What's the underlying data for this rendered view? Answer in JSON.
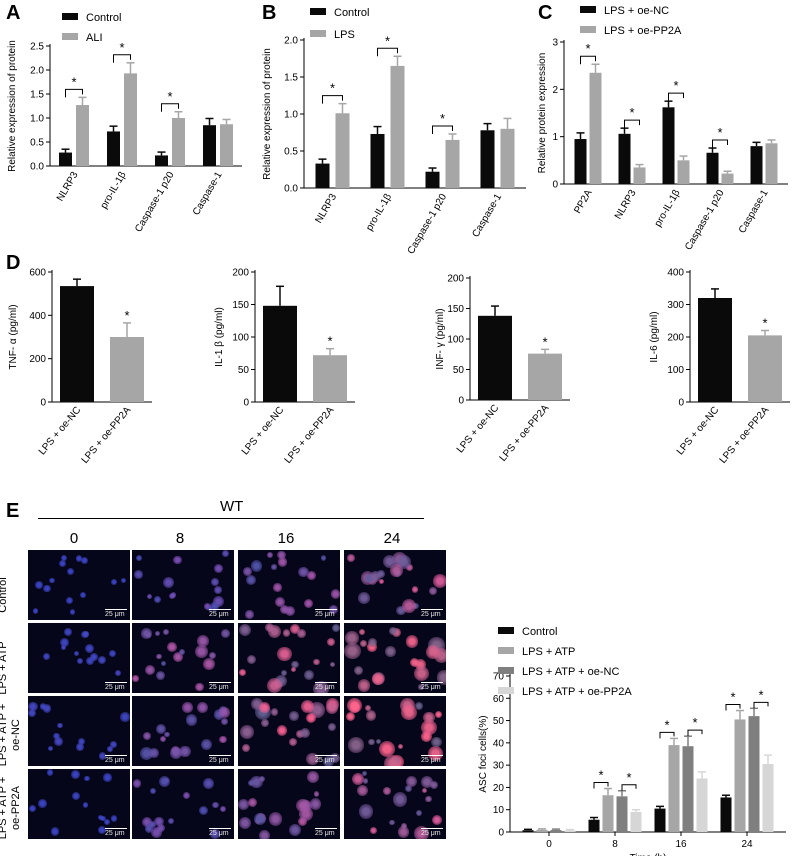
{
  "panels": {
    "a": "A",
    "b": "B",
    "c": "C",
    "d": "D",
    "e": "E"
  },
  "colors": {
    "black": "#0a0a0a",
    "gray": "#a6a6a6",
    "dgray": "#7f7f7f",
    "lgray": "#d6d6d6"
  },
  "significance_marker": "*",
  "chart_data": [
    {
      "id": "A",
      "type": "bar",
      "ylabel": "Relative expression of protein",
      "categories": [
        "NLRP3",
        "pro-IL-1β",
        "Caspase-1 p20",
        "Caspase-1"
      ],
      "yticks": [
        "0.0",
        "0.5",
        "1.0",
        "1.5",
        "2.0",
        "2.5"
      ],
      "ylim": [
        0,
        2.5
      ],
      "series": [
        {
          "name": "Control",
          "values": [
            0.28,
            0.72,
            0.22,
            0.85
          ],
          "errors": [
            0.07,
            0.11,
            0.07,
            0.14
          ]
        },
        {
          "name": "ALI",
          "values": [
            1.27,
            1.93,
            1.0,
            0.87
          ],
          "errors": [
            0.16,
            0.22,
            0.13,
            0.1
          ]
        }
      ],
      "significant": [
        0,
        1,
        2
      ]
    },
    {
      "id": "B",
      "type": "bar",
      "ylabel": "Relative expression of protein",
      "categories": [
        "NLRP3",
        "pro-IL-1β",
        "Caspase-1 p20",
        "Caspase-1"
      ],
      "yticks": [
        "0.0",
        "0.5",
        "1.0",
        "1.5",
        "2.0"
      ],
      "ylim": [
        0,
        2.0
      ],
      "series": [
        {
          "name": "Control",
          "values": [
            0.33,
            0.73,
            0.22,
            0.78
          ],
          "errors": [
            0.06,
            0.1,
            0.05,
            0.09
          ]
        },
        {
          "name": "LPS",
          "values": [
            1.01,
            1.65,
            0.65,
            0.8
          ],
          "errors": [
            0.13,
            0.13,
            0.08,
            0.14
          ]
        }
      ],
      "significant": [
        0,
        1,
        2
      ]
    },
    {
      "id": "C",
      "type": "bar",
      "ylabel": "Relative protein expression",
      "categories": [
        "PP2A",
        "NLRP3",
        "pro-IL-1β",
        "Caspase-1 p20",
        "Caspase-1"
      ],
      "yticks": [
        "0",
        "1",
        "2",
        "3"
      ],
      "ylim": [
        0,
        3
      ],
      "series": [
        {
          "name": "LPS + oe-NC",
          "values": [
            0.95,
            1.06,
            1.62,
            0.66,
            0.8
          ],
          "errors": [
            0.13,
            0.12,
            0.13,
            0.1,
            0.08
          ]
        },
        {
          "name": "LPS + oe-PP2A",
          "values": [
            2.35,
            0.35,
            0.5,
            0.22,
            0.86
          ],
          "errors": [
            0.18,
            0.06,
            0.09,
            0.05,
            0.07
          ]
        }
      ],
      "significant": [
        0,
        1,
        2,
        3
      ]
    },
    {
      "id": "D1",
      "type": "bar",
      "ylabel": "TNF- α (pg/ml)",
      "categories": [
        "LPS + oe-NC",
        "LPS + oe-PP2A"
      ],
      "yticks": [
        "0",
        "200",
        "400",
        "600"
      ],
      "ylim": [
        0,
        600
      ],
      "values": [
        535,
        300
      ],
      "errors": [
        32,
        65
      ]
    },
    {
      "id": "D2",
      "type": "bar",
      "ylabel": "IL-1 β (pg/ml)",
      "categories": [
        "LPS + oe-NC",
        "LPS + oe-PP2A"
      ],
      "yticks": [
        "0",
        "50",
        "100",
        "150",
        "200"
      ],
      "ylim": [
        0,
        200
      ],
      "values": [
        148,
        72
      ],
      "errors": [
        30,
        10
      ]
    },
    {
      "id": "D3",
      "type": "bar",
      "ylabel": "INF- γ (pg/ml)",
      "categories": [
        "LPS + oe-NC",
        "LPS + oe-PP2A"
      ],
      "yticks": [
        "0",
        "50",
        "100",
        "150",
        "200"
      ],
      "ylim": [
        0,
        200
      ],
      "values": [
        138,
        76
      ],
      "errors": [
        16,
        7
      ]
    },
    {
      "id": "D4",
      "type": "bar",
      "ylabel": "IL-6 (pg/ml)",
      "categories": [
        "LPS + oe-NC",
        "LPS + oe-PP2A"
      ],
      "yticks": [
        "0",
        "100",
        "200",
        "300",
        "400"
      ],
      "ylim": [
        0,
        400
      ],
      "values": [
        320,
        205
      ],
      "errors": [
        28,
        15
      ]
    },
    {
      "id": "E",
      "type": "bar",
      "ylabel": "ASC foci cells(%)",
      "xlabel": "Time (h)",
      "categories": [
        "0",
        "8",
        "16",
        "24"
      ],
      "yticks": [
        "0",
        "10",
        "20",
        "30",
        "40",
        "50",
        "60",
        "70"
      ],
      "ylim": [
        0,
        70
      ],
      "series": [
        {
          "name": "Control",
          "values": [
            0.8,
            5.5,
            10.5,
            15.5
          ],
          "errors": [
            0.4,
            1.0,
            1.0,
            1.0
          ]
        },
        {
          "name": "LPS + ATP",
          "values": [
            1.0,
            16.5,
            39.0,
            50.5
          ],
          "errors": [
            0.4,
            3.0,
            3.0,
            4.0
          ]
        },
        {
          "name": "LPS + ATP + oe-NC",
          "values": [
            0.9,
            16.0,
            38.5,
            52.0
          ],
          "errors": [
            0.4,
            2.5,
            4.5,
            3.5
          ]
        },
        {
          "name": "LPS + ATP + oe-PP2A",
          "values": [
            0.7,
            9.0,
            24.0,
            30.5
          ],
          "errors": [
            0.4,
            1.0,
            3.0,
            4.0
          ]
        }
      ],
      "brackets": [
        [
          1,
          0
        ],
        [
          1,
          2
        ],
        [
          2,
          0
        ],
        [
          2,
          2
        ],
        [
          3,
          0
        ],
        [
          3,
          2
        ]
      ]
    }
  ],
  "micrographs": {
    "group_label": "WT",
    "columns": [
      "0",
      "8",
      "16",
      "24"
    ],
    "rows": [
      "Control",
      "LPS + ATP",
      "LPS + ATP +\noe-NC",
      "LPS + ATP +\noe-PP2A"
    ],
    "scale_bar": "25 μm",
    "red_level": [
      [
        0.0,
        0.3,
        0.5,
        0.75
      ],
      [
        0.05,
        0.55,
        0.9,
        1.0
      ],
      [
        0.05,
        0.5,
        0.9,
        1.0
      ],
      [
        0.0,
        0.35,
        0.6,
        0.75
      ]
    ]
  }
}
